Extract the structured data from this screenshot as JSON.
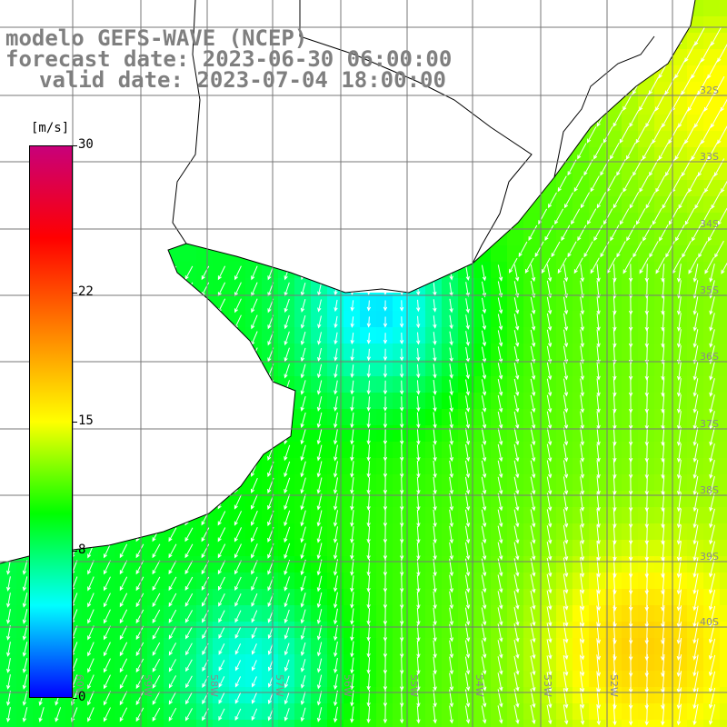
{
  "title": {
    "model": "modelo GEFS-WAVE (NCEP)",
    "forecast": "forecast date: 2023-06-30 06:00:00",
    "valid": "valid date: 2023-07-04 18:00:00"
  },
  "colorbar": {
    "unit": "[m/s]",
    "ticks": [
      "30",
      "22",
      "15",
      "8",
      "0"
    ],
    "tick_values": [
      30,
      22,
      15,
      8,
      0
    ],
    "range": [
      0,
      30
    ],
    "colors": [
      "#0000ff",
      "#00ffff",
      "#00ff00",
      "#ffff00",
      "#ff8000",
      "#ff0000",
      "#c8007a"
    ]
  },
  "map": {
    "lat_labels": [
      "32S",
      "33S",
      "34S",
      "35S",
      "36S",
      "37S",
      "38S",
      "39S",
      "40S"
    ],
    "lon_labels": [
      "60W",
      "59W",
      "58W",
      "57W",
      "56W",
      "55W",
      "54W",
      "53W",
      "52W"
    ],
    "grid": true,
    "land_color": "#ffffff",
    "coast_color": "#000000",
    "arrow_color": "#ffffff"
  }
}
